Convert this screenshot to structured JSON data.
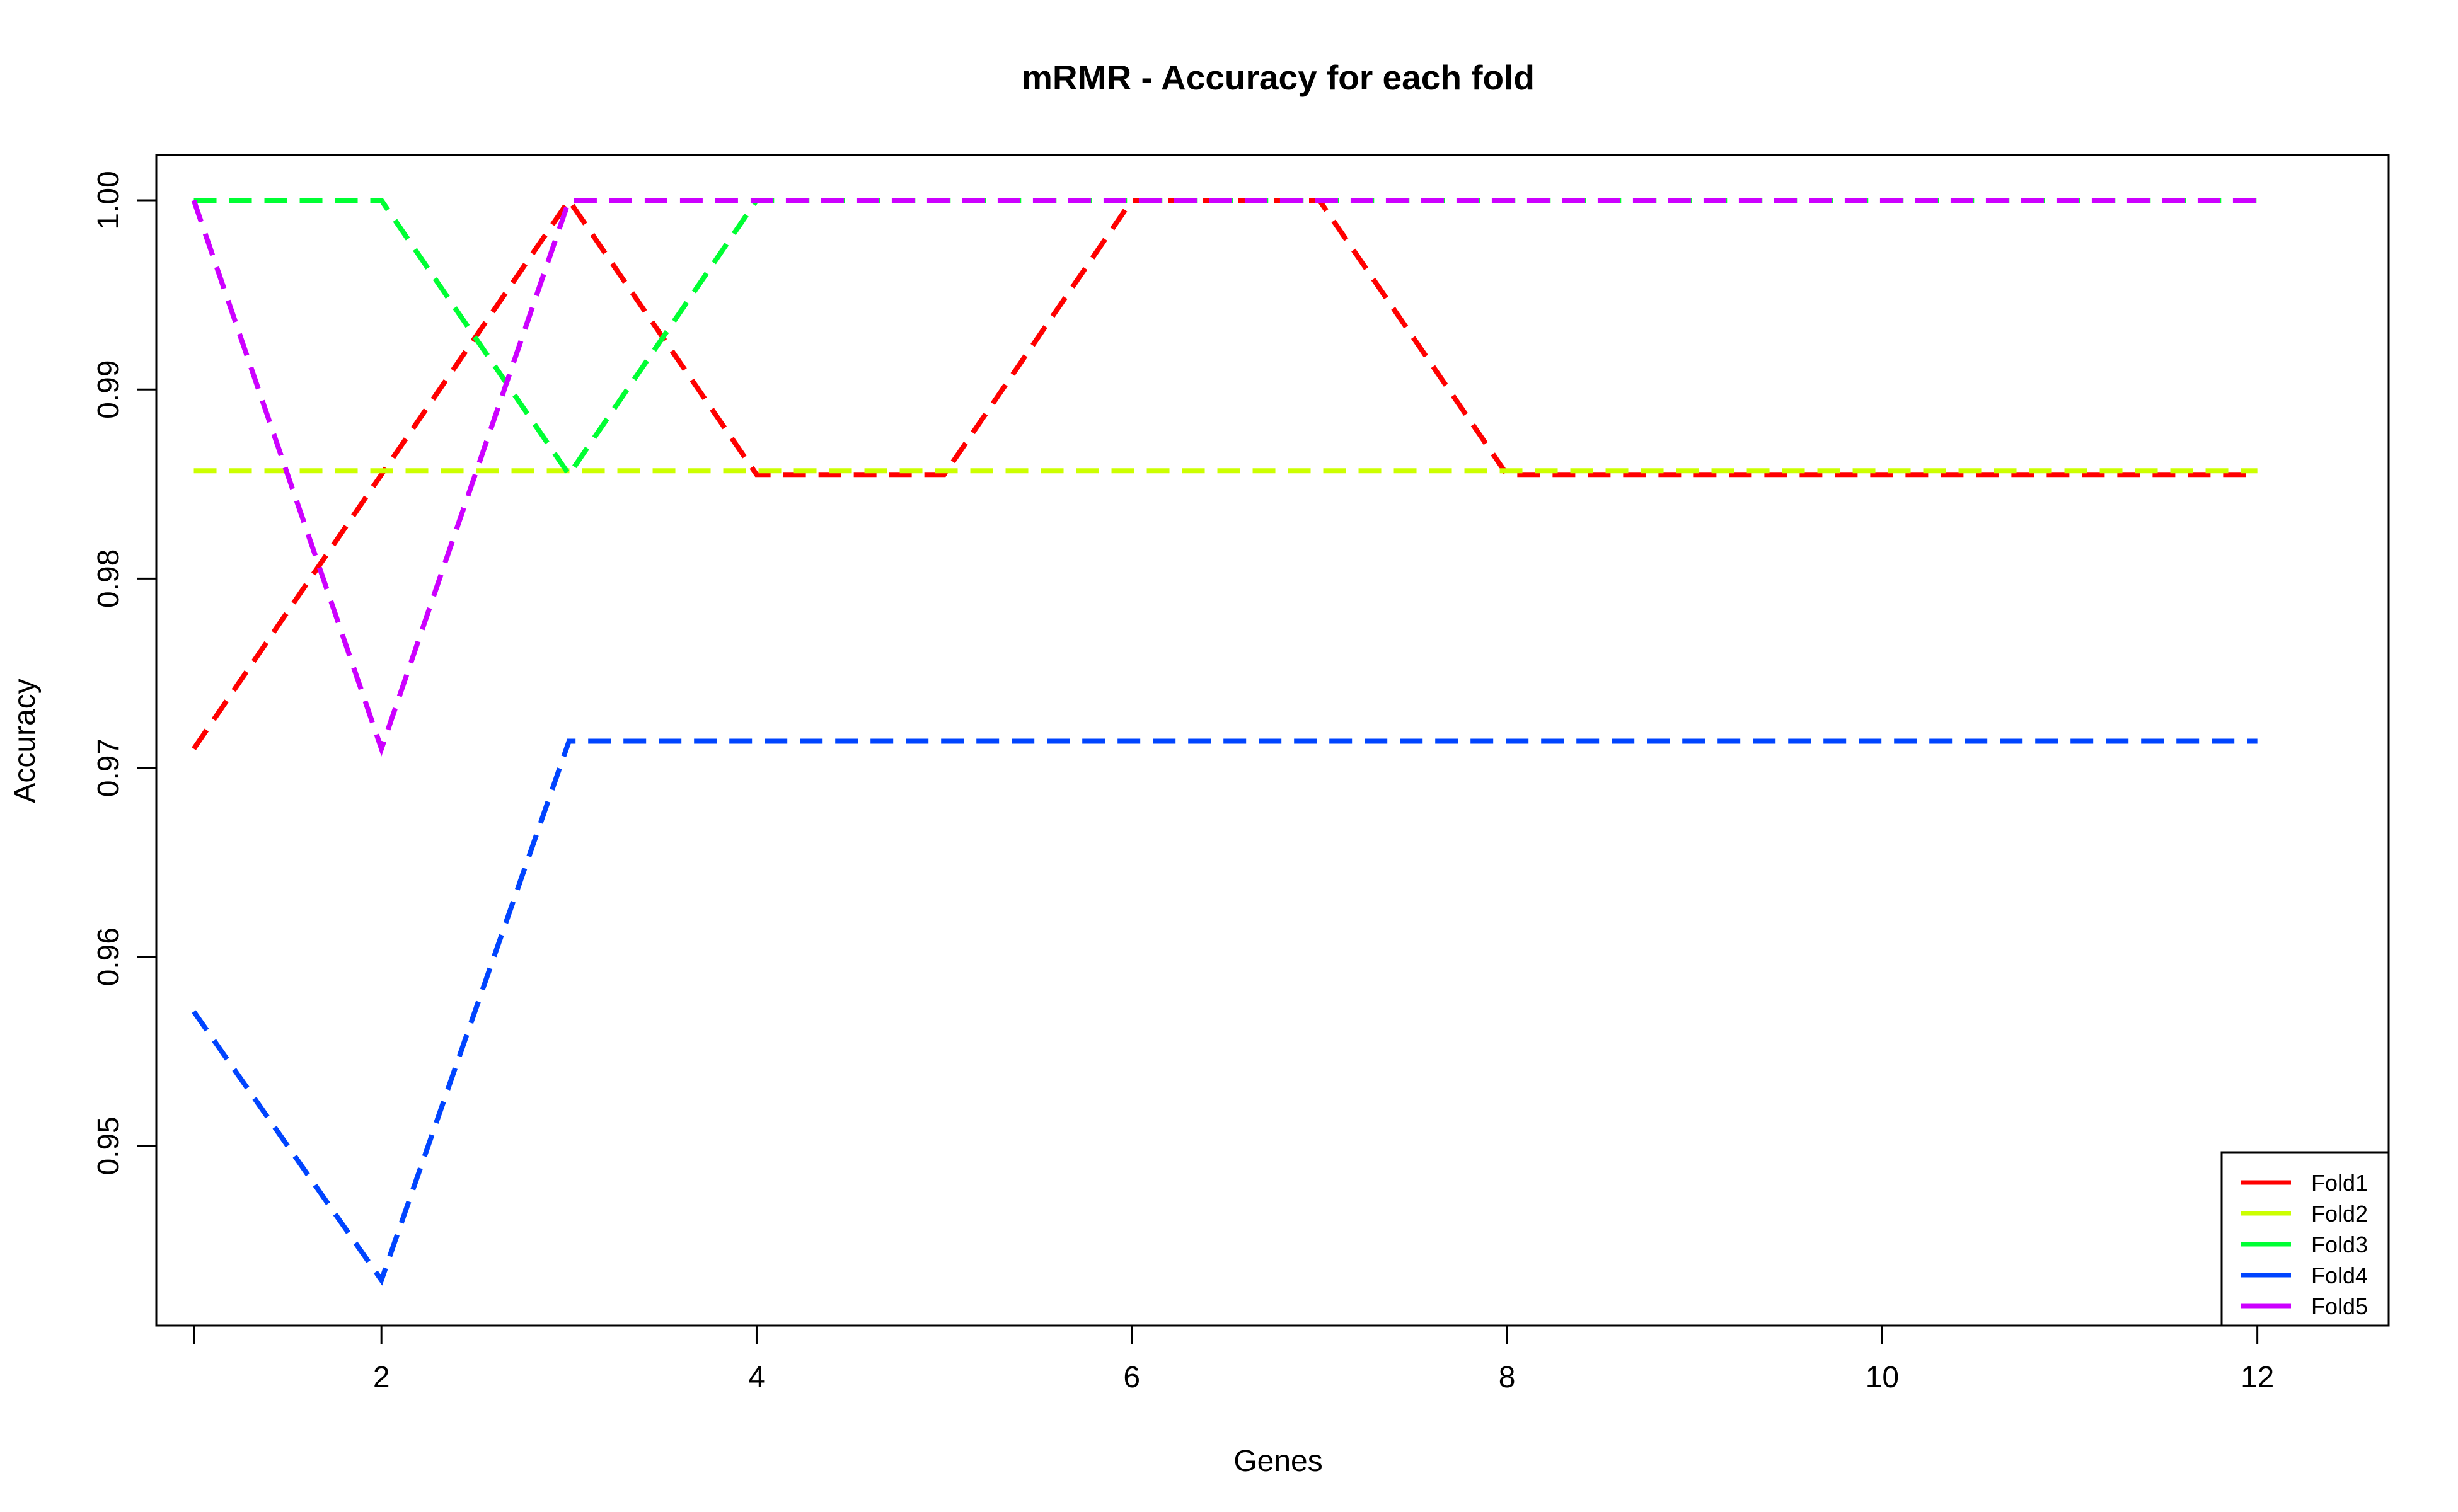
{
  "chart_data": {
    "type": "line",
    "title": "mRMR - Accuracy for each fold",
    "xlabel": "Genes",
    "ylabel": "Accuracy",
    "xlim": [
      0.8,
      12.7
    ],
    "ylim": [
      0.9405,
      1.0024
    ],
    "x_ticks": [
      2,
      4,
      6,
      8,
      10,
      12
    ],
    "y_ticks": [
      0.95,
      0.96,
      0.97,
      0.98,
      0.99,
      1.0
    ],
    "y_tick_labels": [
      "0.95",
      "0.96",
      "0.97",
      "0.98",
      "0.99",
      "1.00"
    ],
    "x": [
      1,
      2,
      3,
      4,
      5,
      6,
      7,
      8,
      9,
      10,
      11,
      12
    ],
    "grid": false,
    "line_style": "dashed",
    "legend_position": "bottom-right",
    "series": [
      {
        "name": "Fold1",
        "color": "#ff0000",
        "values": [
          0.971,
          0.9855,
          1.0,
          0.9855,
          0.9855,
          1.0,
          1.0,
          0.9855,
          0.9855,
          0.9855,
          0.9855,
          0.9855
        ]
      },
      {
        "name": "Fold2",
        "color": "#ccff00",
        "values": [
          0.9857,
          0.9857,
          0.9857,
          0.9857,
          0.9857,
          0.9857,
          0.9857,
          0.9857,
          0.9857,
          0.9857,
          0.9857,
          0.9857
        ]
      },
      {
        "name": "Fold3",
        "color": "#00ff33",
        "values": [
          1.0,
          1.0,
          0.9855,
          1.0,
          1.0,
          1.0,
          1.0,
          1.0,
          1.0,
          1.0,
          1.0,
          1.0
        ]
      },
      {
        "name": "Fold4",
        "color": "#0044ff",
        "values": [
          0.9571,
          0.9429,
          0.9714,
          0.9714,
          0.9714,
          0.9714,
          0.9714,
          0.9714,
          0.9714,
          0.9714,
          0.9714,
          0.9714
        ]
      },
      {
        "name": "Fold5",
        "color": "#cc00ff",
        "values": [
          1.0,
          0.971,
          1.0,
          1.0,
          1.0,
          1.0,
          1.0,
          1.0,
          1.0,
          1.0,
          1.0,
          1.0
        ]
      }
    ]
  }
}
